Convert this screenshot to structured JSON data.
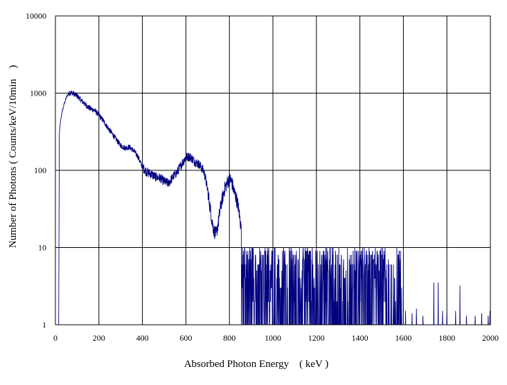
{
  "chart_data": {
    "type": "line",
    "title": "",
    "xlabel": "Absorbed Photon Energy　( keV )",
    "ylabel": "Number  of Photons ( Counts/keV/10min　)",
    "xlim": [
      0,
      2000
    ],
    "ylim": [
      1,
      10000
    ],
    "yscale": "log",
    "grid": true,
    "legend": "none",
    "x_ticks": [
      "0",
      "200",
      "400",
      "600",
      "800",
      "1000",
      "1200",
      "1400",
      "1600",
      "1800",
      "2000"
    ],
    "y_ticks": [
      "1",
      "10",
      "100",
      "1000",
      "10000"
    ],
    "series": [
      {
        "color": "#000080",
        "points": [
          [
            15,
            1
          ],
          [
            18,
            300
          ],
          [
            22,
            400
          ],
          [
            30,
            560
          ],
          [
            40,
            720
          ],
          [
            50,
            880
          ],
          [
            60,
            980
          ],
          [
            70,
            1020
          ],
          [
            80,
            1000
          ],
          [
            100,
            920
          ],
          [
            120,
            800
          ],
          [
            140,
            700
          ],
          [
            160,
            630
          ],
          [
            180,
            600
          ],
          [
            200,
            520
          ],
          [
            220,
            440
          ],
          [
            240,
            360
          ],
          [
            260,
            300
          ],
          [
            280,
            250
          ],
          [
            300,
            210
          ],
          [
            320,
            195
          ],
          [
            340,
            200
          ],
          [
            360,
            180
          ],
          [
            380,
            150
          ],
          [
            400,
            110
          ],
          [
            420,
            95
          ],
          [
            440,
            90
          ],
          [
            460,
            82
          ],
          [
            480,
            80
          ],
          [
            500,
            72
          ],
          [
            520,
            68
          ],
          [
            540,
            82
          ],
          [
            560,
            95
          ],
          [
            580,
            120
          ],
          [
            600,
            148
          ],
          [
            620,
            150
          ],
          [
            640,
            130
          ],
          [
            660,
            120
          ],
          [
            680,
            100
          ],
          [
            690,
            80
          ],
          [
            700,
            55
          ],
          [
            710,
            35
          ],
          [
            720,
            22
          ],
          [
            730,
            16
          ],
          [
            740,
            15
          ],
          [
            750,
            22
          ],
          [
            760,
            35
          ],
          [
            780,
            60
          ],
          [
            800,
            78
          ],
          [
            810,
            72
          ],
          [
            820,
            55
          ],
          [
            830,
            45
          ],
          [
            840,
            35
          ],
          [
            850,
            22
          ],
          [
            860,
            12
          ],
          [
            870,
            7
          ],
          [
            880,
            4
          ]
        ]
      }
    ],
    "noise_region": {
      "x_range": [
        855,
        1600
      ],
      "low": 1,
      "high": 10,
      "clusters_x": [
        1250,
        1400,
        1450,
        1480
      ]
    },
    "sparse_spikes": [
      [
        1610,
        1.5
      ],
      [
        1640,
        1.4
      ],
      [
        1660,
        1.6
      ],
      [
        1690,
        1.3
      ],
      [
        1740,
        3.5
      ],
      [
        1760,
        3.5
      ],
      [
        1780,
        1.5
      ],
      [
        1800,
        1.4
      ],
      [
        1840,
        1.5
      ],
      [
        1860,
        3.2
      ],
      [
        1890,
        1.3
      ],
      [
        1930,
        1.3
      ],
      [
        1960,
        1.4
      ],
      [
        1990,
        1.3
      ],
      [
        1998,
        1.5
      ]
    ]
  }
}
